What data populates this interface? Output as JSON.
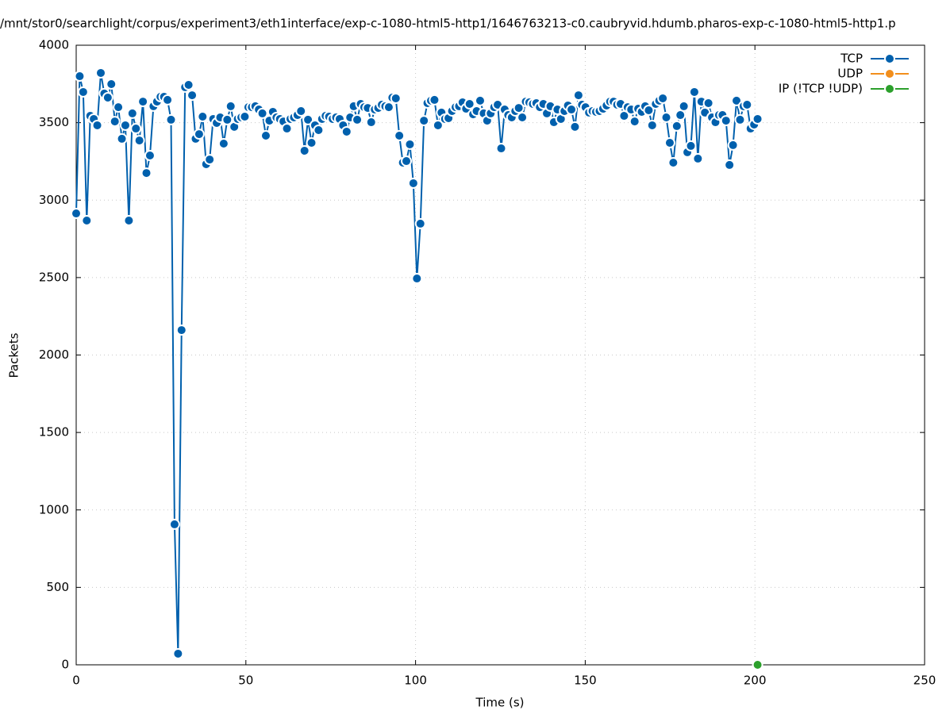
{
  "chart_data": {
    "type": "line",
    "title": "/mnt/stor0/searchlight/corpus/experiment3/eth1interface/exp-c-1080-html5-http1/1646763213-c0.caubryvid.hdumb.pharos-exp-c-1080-html5-http1.p",
    "x_label": "Time (s)",
    "y_label": "Packets",
    "xlim": [
      0,
      250
    ],
    "xticks": [
      0,
      50,
      100,
      150,
      200,
      250
    ],
    "ylim": [
      0,
      4000
    ],
    "yticks": [
      0,
      500,
      1000,
      1500,
      2000,
      2500,
      3000,
      3500,
      4000
    ],
    "grid": true,
    "legend": "top-right",
    "series": [
      {
        "name": "TCP",
        "color": "#0060ad",
        "x": [
          0,
          1.04,
          2.07,
          3.11,
          4.14,
          5.18,
          6.21,
          7.25,
          8.28,
          9.32,
          10.35,
          11.39,
          12.42,
          13.46,
          14.49,
          15.53,
          16.56,
          17.6,
          18.63,
          19.67,
          20.7,
          21.74,
          22.77,
          23.81,
          24.84,
          25.88,
          26.91,
          27.95,
          28.98,
          30.02,
          31.05,
          32.09,
          33.12,
          34.16,
          35.19,
          36.23,
          37.26,
          38.3,
          39.33,
          40.37,
          41.4,
          42.44,
          43.47,
          44.51,
          45.54,
          46.58,
          47.61,
          48.65,
          49.68,
          50.72,
          51.75,
          52.79,
          53.82,
          54.86,
          55.89,
          56.93,
          57.96,
          59,
          60.03,
          61.07,
          62.1,
          63.14,
          64.17,
          65.21,
          66.24,
          67.28,
          68.31,
          69.35,
          70.38,
          71.42,
          72.45,
          73.49,
          74.52,
          75.56,
          76.59,
          77.63,
          78.66,
          79.7,
          80.73,
          81.77,
          82.8,
          83.84,
          84.87,
          85.91,
          86.94,
          87.98,
          89.01,
          90.05,
          91.08,
          92.12,
          93.15,
          94.19,
          95.22,
          96.26,
          97.29,
          98.33,
          99.36,
          100.4,
          101.43,
          102.47,
          103.5,
          104.54,
          105.57,
          106.61,
          107.64,
          108.68,
          109.71,
          110.75,
          111.78,
          112.82,
          113.85,
          114.89,
          115.92,
          116.96,
          117.99,
          119.03,
          120.06,
          121.1,
          122.13,
          123.17,
          124.2,
          125.24,
          126.27,
          127.31,
          128.34,
          129.38,
          130.41,
          131.45,
          132.48,
          133.52,
          134.55,
          135.59,
          136.62,
          137.66,
          138.69,
          139.73,
          140.76,
          141.8,
          142.83,
          143.87,
          144.9,
          145.94,
          146.97,
          148.01,
          149.04,
          150.08,
          151.11,
          152.15,
          153.18,
          154.22,
          155.25,
          156.29,
          157.32,
          158.36,
          159.39,
          160.43,
          161.46,
          162.5,
          163.53,
          164.57,
          165.6,
          166.64,
          167.67,
          168.71,
          169.74,
          170.78,
          171.81,
          172.85,
          173.88,
          174.92,
          175.95,
          176.99,
          178.02,
          179.06,
          180.09,
          181.13,
          182.16,
          183.2,
          184.23,
          185.27,
          186.3,
          187.34,
          188.37,
          189.41,
          190.44,
          191.48,
          192.51,
          193.55,
          194.58,
          195.62,
          196.65,
          197.69,
          198.72,
          199.76,
          200.79
        ],
        "values": [
          2914,
          3800,
          3698,
          2868,
          3544,
          3524,
          3483,
          3821,
          3688,
          3662,
          3749,
          3508,
          3600,
          3396,
          3483,
          2868,
          3560,
          3462,
          3385,
          3636,
          3175,
          3288,
          3606,
          3636,
          3667,
          3667,
          3647,
          3519,
          907,
          72,
          2161,
          3729,
          3744,
          3677,
          3396,
          3426,
          3539,
          3232,
          3262,
          3524,
          3498,
          3534,
          3365,
          3519,
          3606,
          3473,
          3524,
          3534,
          3539,
          3600,
          3600,
          3606,
          3585,
          3560,
          3416,
          3513,
          3570,
          3534,
          3524,
          3508,
          3462,
          3524,
          3534,
          3549,
          3575,
          3319,
          3519,
          3370,
          3483,
          3452,
          3524,
          3544,
          3539,
          3524,
          3534,
          3524,
          3483,
          3442,
          3534,
          3606,
          3519,
          3621,
          3600,
          3595,
          3503,
          3585,
          3595,
          3616,
          3606,
          3600,
          3662,
          3657,
          3416,
          3242,
          3252,
          3360,
          3109,
          2494,
          2848,
          3513,
          3626,
          3642,
          3647,
          3483,
          3565,
          3524,
          3529,
          3575,
          3600,
          3606,
          3631,
          3590,
          3621,
          3554,
          3575,
          3642,
          3560,
          3513,
          3560,
          3600,
          3616,
          3334,
          3585,
          3549,
          3534,
          3575,
          3595,
          3534,
          3636,
          3631,
          3621,
          3626,
          3600,
          3621,
          3560,
          3606,
          3503,
          3585,
          3524,
          3575,
          3611,
          3585,
          3473,
          3677,
          3616,
          3600,
          3565,
          3575,
          3570,
          3575,
          3590,
          3611,
          3636,
          3636,
          3616,
          3621,
          3544,
          3600,
          3585,
          3508,
          3590,
          3570,
          3606,
          3580,
          3483,
          3621,
          3642,
          3657,
          3534,
          3370,
          3242,
          3478,
          3549,
          3606,
          3309,
          3350,
          3698,
          3268,
          3636,
          3565,
          3626,
          3534,
          3503,
          3549,
          3549,
          3513,
          3227,
          3355,
          3642,
          3519,
          3606,
          3616,
          3462,
          3488,
          3524
        ]
      },
      {
        "name": "UDP",
        "color": "#f28e1c",
        "x": [],
        "values": []
      },
      {
        "name": "IP (!TCP  !UDP)",
        "color": "#2ca02c",
        "x": [
          200.79
        ],
        "values": [
          0
        ]
      }
    ]
  }
}
